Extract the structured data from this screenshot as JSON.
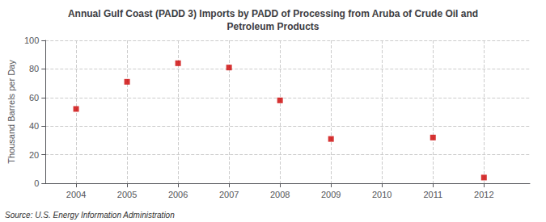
{
  "chart_data": {
    "type": "scatter",
    "title": "Annual Gulf Coast (PADD 3) Imports by PADD of Processing from Aruba of Crude Oil and\nPetroleum Products",
    "ylabel": "Thousand Barrels per Day",
    "source": "Source: U.S. Energy Information Administration",
    "x": [
      2004,
      2005,
      2006,
      2007,
      2008,
      2009,
      2010,
      2011,
      2012
    ],
    "values": [
      52,
      71,
      84,
      81,
      58,
      31,
      null,
      32,
      4
    ],
    "color": "#cc0000",
    "marker": "square",
    "xlim": [
      2003.4,
      2012.9
    ],
    "xticks": [
      2004,
      2005,
      2006,
      2007,
      2008,
      2009,
      2010,
      2011,
      2012
    ],
    "ylim": [
      0,
      100
    ],
    "yticks": [
      0,
      20,
      40,
      60,
      80,
      100
    ],
    "grid": true
  }
}
